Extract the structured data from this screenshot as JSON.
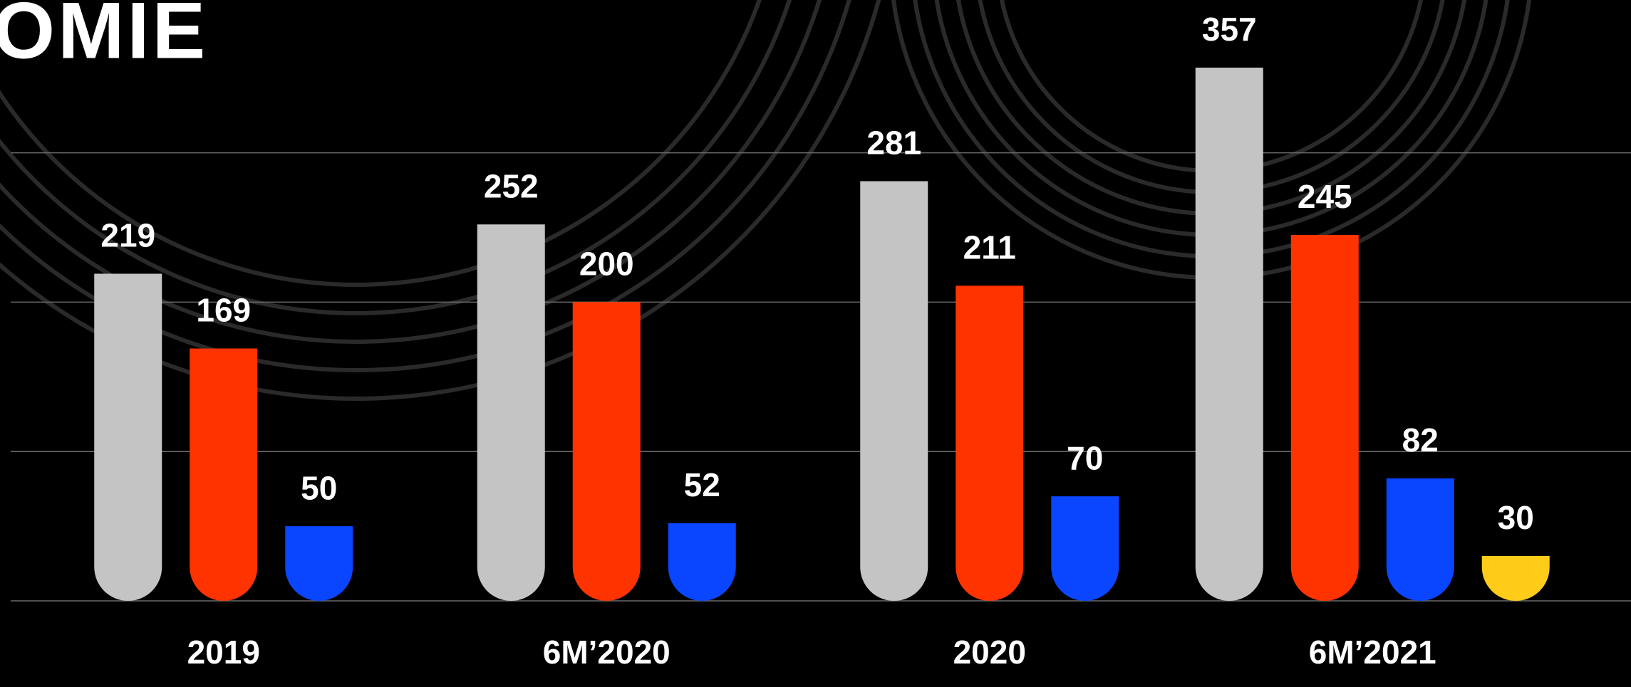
{
  "chart_data": {
    "type": "bar",
    "title": "OMIE",
    "categories": [
      "2019",
      "6M’2020",
      "2020",
      "6M’2021"
    ],
    "series": [
      {
        "color": "#c4c4c4",
        "values": [
          219,
          252,
          281,
          357
        ]
      },
      {
        "color": "#ff3300",
        "values": [
          169,
          200,
          211,
          245
        ]
      },
      {
        "color": "#0a46ff",
        "values": [
          50,
          52,
          70,
          82
        ]
      },
      {
        "color": "#ffcc1a",
        "values": [
          null,
          null,
          null,
          30
        ]
      }
    ],
    "ylim": [
      0,
      400
    ],
    "yticks": [
      0,
      100,
      200,
      300
    ],
    "grid": true
  }
}
